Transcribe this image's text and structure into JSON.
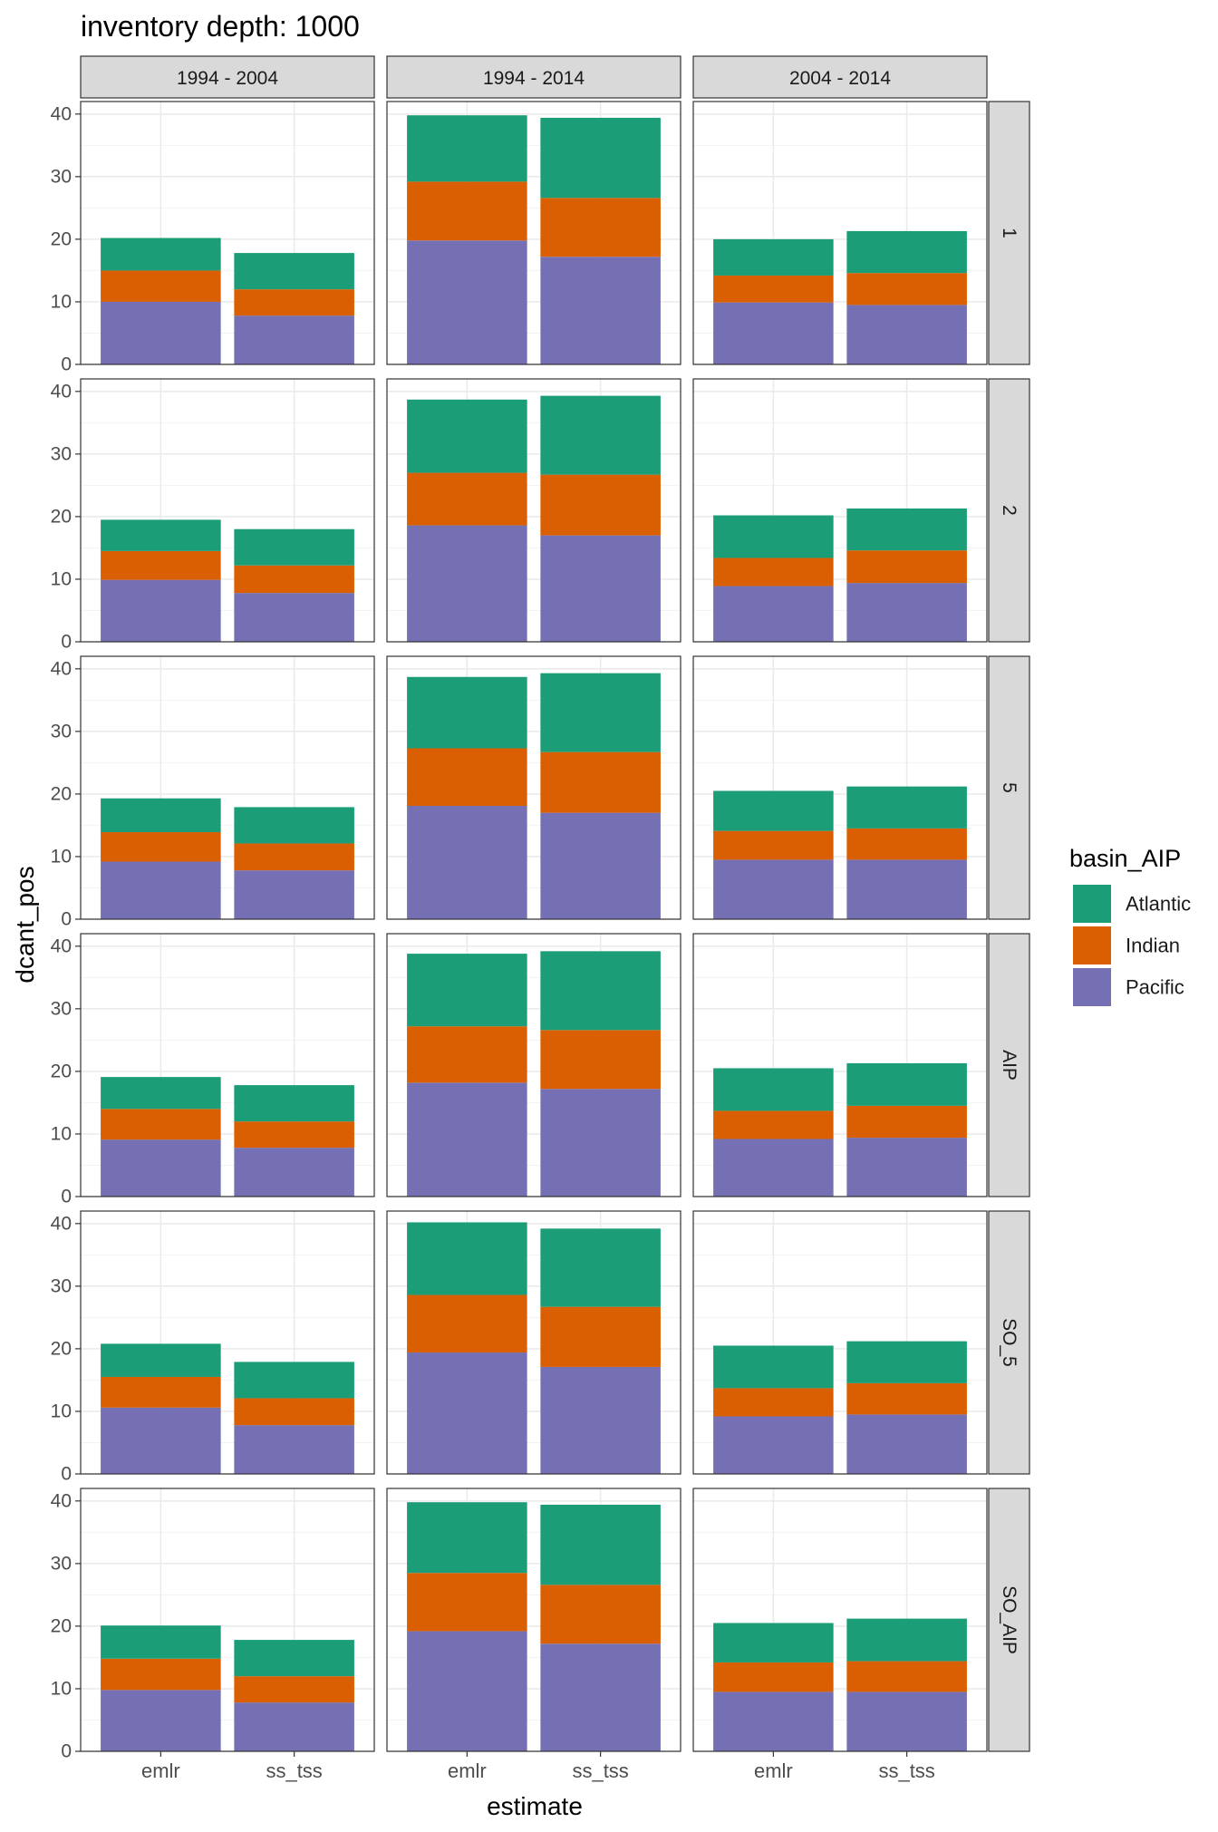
{
  "chart_data": {
    "type": "bar",
    "stacked": true,
    "title": "inventory depth: 1000",
    "xlabel": "estimate",
    "ylabel": "dcant_pos",
    "ylim": [
      0,
      42
    ],
    "yticks": [
      0,
      10,
      20,
      30,
      40
    ],
    "categories": [
      "emlr",
      "ss_tss"
    ],
    "facet_cols": [
      "1994 - 2004",
      "1994 - 2014",
      "2004 - 2014"
    ],
    "facet_rows": [
      "1",
      "2",
      "5",
      "AIP",
      "SO_5",
      "SO_AIP"
    ],
    "legend": {
      "title": "basin_AIP",
      "position": "right",
      "entries": [
        {
          "name": "Atlantic",
          "color": "#1b9e77"
        },
        {
          "name": "Indian",
          "color": "#d95f02"
        },
        {
          "name": "Pacific",
          "color": "#7570b3"
        }
      ]
    },
    "stack_order": [
      "Pacific",
      "Indian",
      "Atlantic"
    ],
    "panels": [
      {
        "row": "1",
        "col": "1994 - 2004",
        "bars": [
          {
            "category": "emlr",
            "Pacific": 10.0,
            "Indian": 5.0,
            "Atlantic": 5.2
          },
          {
            "category": "ss_tss",
            "Pacific": 7.8,
            "Indian": 4.2,
            "Atlantic": 5.8
          }
        ]
      },
      {
        "row": "1",
        "col": "1994 - 2014",
        "bars": [
          {
            "category": "emlr",
            "Pacific": 19.8,
            "Indian": 9.4,
            "Atlantic": 10.6
          },
          {
            "category": "ss_tss",
            "Pacific": 17.2,
            "Indian": 9.4,
            "Atlantic": 12.8
          }
        ]
      },
      {
        "row": "1",
        "col": "2004 - 2014",
        "bars": [
          {
            "category": "emlr",
            "Pacific": 9.9,
            "Indian": 4.3,
            "Atlantic": 5.8
          },
          {
            "category": "ss_tss",
            "Pacific": 9.5,
            "Indian": 5.1,
            "Atlantic": 6.7
          }
        ]
      },
      {
        "row": "2",
        "col": "1994 - 2004",
        "bars": [
          {
            "category": "emlr",
            "Pacific": 9.9,
            "Indian": 4.6,
            "Atlantic": 5.0
          },
          {
            "category": "ss_tss",
            "Pacific": 7.8,
            "Indian": 4.4,
            "Atlantic": 5.8
          }
        ]
      },
      {
        "row": "2",
        "col": "1994 - 2014",
        "bars": [
          {
            "category": "emlr",
            "Pacific": 18.6,
            "Indian": 8.4,
            "Atlantic": 11.7
          },
          {
            "category": "ss_tss",
            "Pacific": 17.0,
            "Indian": 9.7,
            "Atlantic": 12.6
          }
        ]
      },
      {
        "row": "2",
        "col": "2004 - 2014",
        "bars": [
          {
            "category": "emlr",
            "Pacific": 8.9,
            "Indian": 4.5,
            "Atlantic": 6.8
          },
          {
            "category": "ss_tss",
            "Pacific": 9.4,
            "Indian": 5.2,
            "Atlantic": 6.7
          }
        ]
      },
      {
        "row": "5",
        "col": "1994 - 2004",
        "bars": [
          {
            "category": "emlr",
            "Pacific": 9.2,
            "Indian": 4.7,
            "Atlantic": 5.4
          },
          {
            "category": "ss_tss",
            "Pacific": 7.8,
            "Indian": 4.3,
            "Atlantic": 5.8
          }
        ]
      },
      {
        "row": "5",
        "col": "1994 - 2014",
        "bars": [
          {
            "category": "emlr",
            "Pacific": 18.1,
            "Indian": 9.2,
            "Atlantic": 11.4
          },
          {
            "category": "ss_tss",
            "Pacific": 17.0,
            "Indian": 9.7,
            "Atlantic": 12.6
          }
        ]
      },
      {
        "row": "5",
        "col": "2004 - 2014",
        "bars": [
          {
            "category": "emlr",
            "Pacific": 9.5,
            "Indian": 4.6,
            "Atlantic": 6.4
          },
          {
            "category": "ss_tss",
            "Pacific": 9.5,
            "Indian": 5.0,
            "Atlantic": 6.7
          }
        ]
      },
      {
        "row": "AIP",
        "col": "1994 - 2004",
        "bars": [
          {
            "category": "emlr",
            "Pacific": 9.1,
            "Indian": 4.9,
            "Atlantic": 5.1
          },
          {
            "category": "ss_tss",
            "Pacific": 7.8,
            "Indian": 4.2,
            "Atlantic": 5.8
          }
        ]
      },
      {
        "row": "AIP",
        "col": "1994 - 2014",
        "bars": [
          {
            "category": "emlr",
            "Pacific": 18.2,
            "Indian": 9.0,
            "Atlantic": 11.6
          },
          {
            "category": "ss_tss",
            "Pacific": 17.2,
            "Indian": 9.4,
            "Atlantic": 12.6
          }
        ]
      },
      {
        "row": "AIP",
        "col": "2004 - 2014",
        "bars": [
          {
            "category": "emlr",
            "Pacific": 9.2,
            "Indian": 4.5,
            "Atlantic": 6.8
          },
          {
            "category": "ss_tss",
            "Pacific": 9.4,
            "Indian": 5.1,
            "Atlantic": 6.8
          }
        ]
      },
      {
        "row": "SO_5",
        "col": "1994 - 2004",
        "bars": [
          {
            "category": "emlr",
            "Pacific": 10.6,
            "Indian": 4.9,
            "Atlantic": 5.3
          },
          {
            "category": "ss_tss",
            "Pacific": 7.8,
            "Indian": 4.3,
            "Atlantic": 5.8
          }
        ]
      },
      {
        "row": "SO_5",
        "col": "1994 - 2014",
        "bars": [
          {
            "category": "emlr",
            "Pacific": 19.4,
            "Indian": 9.2,
            "Atlantic": 11.6
          },
          {
            "category": "ss_tss",
            "Pacific": 17.1,
            "Indian": 9.6,
            "Atlantic": 12.5
          }
        ]
      },
      {
        "row": "SO_5",
        "col": "2004 - 2014",
        "bars": [
          {
            "category": "emlr",
            "Pacific": 9.2,
            "Indian": 4.5,
            "Atlantic": 6.8
          },
          {
            "category": "ss_tss",
            "Pacific": 9.5,
            "Indian": 5.0,
            "Atlantic": 6.7
          }
        ]
      },
      {
        "row": "SO_AIP",
        "col": "1994 - 2004",
        "bars": [
          {
            "category": "emlr",
            "Pacific": 9.8,
            "Indian": 5.0,
            "Atlantic": 5.3
          },
          {
            "category": "ss_tss",
            "Pacific": 7.8,
            "Indian": 4.2,
            "Atlantic": 5.8
          }
        ]
      },
      {
        "row": "SO_AIP",
        "col": "1994 - 2014",
        "bars": [
          {
            "category": "emlr",
            "Pacific": 19.2,
            "Indian": 9.3,
            "Atlantic": 11.3
          },
          {
            "category": "ss_tss",
            "Pacific": 17.2,
            "Indian": 9.4,
            "Atlantic": 12.8
          }
        ]
      },
      {
        "row": "SO_AIP",
        "col": "2004 - 2014",
        "bars": [
          {
            "category": "emlr",
            "Pacific": 9.5,
            "Indian": 4.7,
            "Atlantic": 6.3
          },
          {
            "category": "ss_tss",
            "Pacific": 9.5,
            "Indian": 4.9,
            "Atlantic": 6.8
          }
        ]
      }
    ]
  }
}
